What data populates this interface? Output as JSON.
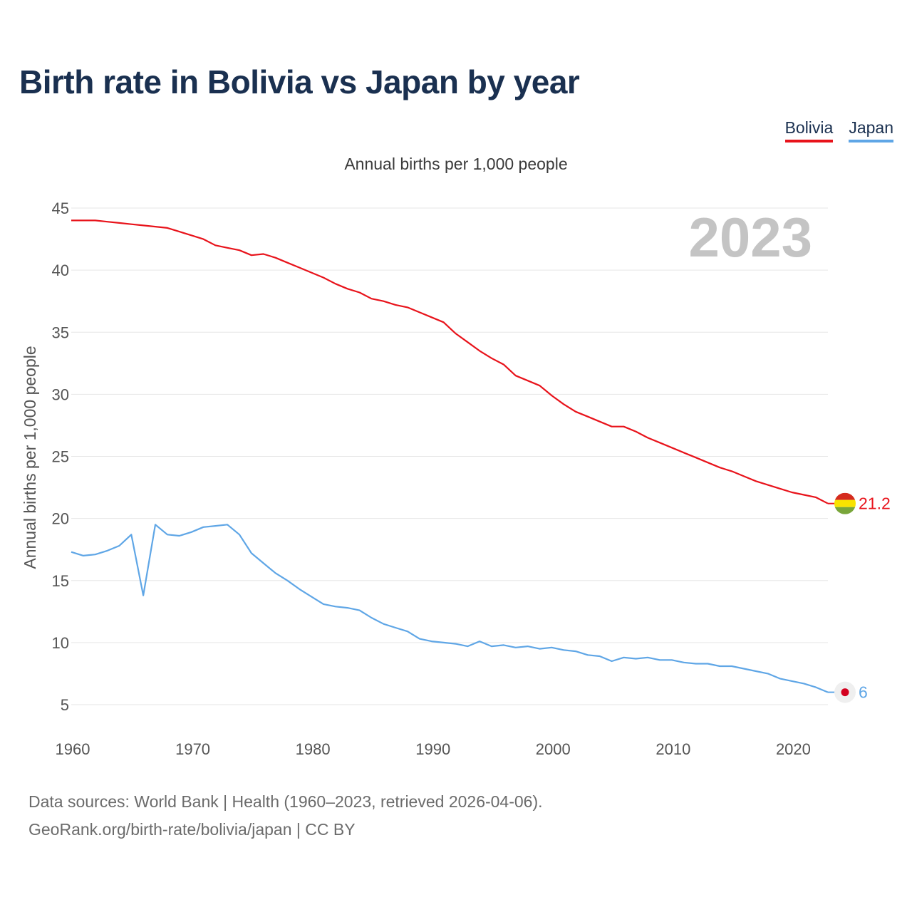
{
  "title": "Birth rate in Bolivia vs Japan by year",
  "subtitle": "Annual births per 1,000 people",
  "legend": [
    {
      "label": "Bolivia"
    },
    {
      "label": "Japan"
    }
  ],
  "footer": {
    "line1": "Data sources: World Bank | Health (1960–2023, retrieved 2026-04-06).",
    "line2": "GeoRank.org/birth-rate/bolivia/japan | CC BY"
  },
  "colors": {
    "bolivia": "#e8131b",
    "japan": "#5fa6e6"
  },
  "chart_data": {
    "type": "line",
    "title": "Birth rate in Bolivia vs Japan by year",
    "xlabel": "",
    "ylabel": "Annual births per 1,000 people",
    "year_label": "2023",
    "xlim": [
      1960,
      2023
    ],
    "ylim": [
      5,
      45
    ],
    "xticks": [
      1960,
      1970,
      1980,
      1990,
      2000,
      2010,
      2020
    ],
    "yticks": [
      5,
      10,
      15,
      20,
      25,
      30,
      35,
      40,
      45
    ],
    "grid": true,
    "legend_position": "top-right",
    "x": [
      1960,
      1961,
      1962,
      1963,
      1964,
      1965,
      1966,
      1967,
      1968,
      1969,
      1970,
      1971,
      1972,
      1973,
      1974,
      1975,
      1976,
      1977,
      1978,
      1979,
      1980,
      1981,
      1982,
      1983,
      1984,
      1985,
      1986,
      1987,
      1988,
      1989,
      1990,
      1991,
      1992,
      1993,
      1994,
      1995,
      1996,
      1997,
      1998,
      1999,
      2000,
      2001,
      2002,
      2003,
      2004,
      2005,
      2006,
      2007,
      2008,
      2009,
      2010,
      2011,
      2012,
      2013,
      2014,
      2015,
      2016,
      2017,
      2018,
      2019,
      2020,
      2021,
      2022,
      2023
    ],
    "series": [
      {
        "name": "Bolivia",
        "end_label": "21.2",
        "values": [
          44.0,
          44.0,
          44.0,
          43.9,
          43.8,
          43.7,
          43.6,
          43.5,
          43.4,
          43.1,
          42.8,
          42.5,
          42.0,
          41.8,
          41.6,
          41.2,
          41.3,
          41.0,
          40.6,
          40.2,
          39.8,
          39.4,
          38.9,
          38.5,
          38.2,
          37.7,
          37.5,
          37.2,
          37.0,
          36.6,
          36.2,
          35.8,
          34.9,
          34.2,
          33.5,
          32.9,
          32.4,
          31.5,
          31.1,
          30.7,
          29.9,
          29.2,
          28.6,
          28.2,
          27.8,
          27.4,
          27.4,
          27.0,
          26.5,
          26.1,
          25.7,
          25.3,
          24.9,
          24.5,
          24.1,
          23.8,
          23.4,
          23.0,
          22.7,
          22.4,
          22.1,
          21.9,
          21.7,
          21.2
        ]
      },
      {
        "name": "Japan",
        "end_label": "6",
        "values": [
          17.3,
          17.0,
          17.1,
          17.4,
          17.8,
          18.7,
          13.8,
          19.5,
          18.7,
          18.6,
          18.9,
          19.3,
          19.4,
          19.5,
          18.7,
          17.2,
          16.4,
          15.6,
          15.0,
          14.3,
          13.7,
          13.1,
          12.9,
          12.8,
          12.6,
          12.0,
          11.5,
          11.2,
          10.9,
          10.3,
          10.1,
          10.0,
          9.9,
          9.7,
          10.1,
          9.7,
          9.8,
          9.6,
          9.7,
          9.5,
          9.6,
          9.4,
          9.3,
          9.0,
          8.9,
          8.5,
          8.8,
          8.7,
          8.8,
          8.6,
          8.6,
          8.4,
          8.3,
          8.3,
          8.1,
          8.1,
          7.9,
          7.7,
          7.5,
          7.1,
          6.9,
          6.7,
          6.4,
          6.0
        ]
      }
    ]
  }
}
